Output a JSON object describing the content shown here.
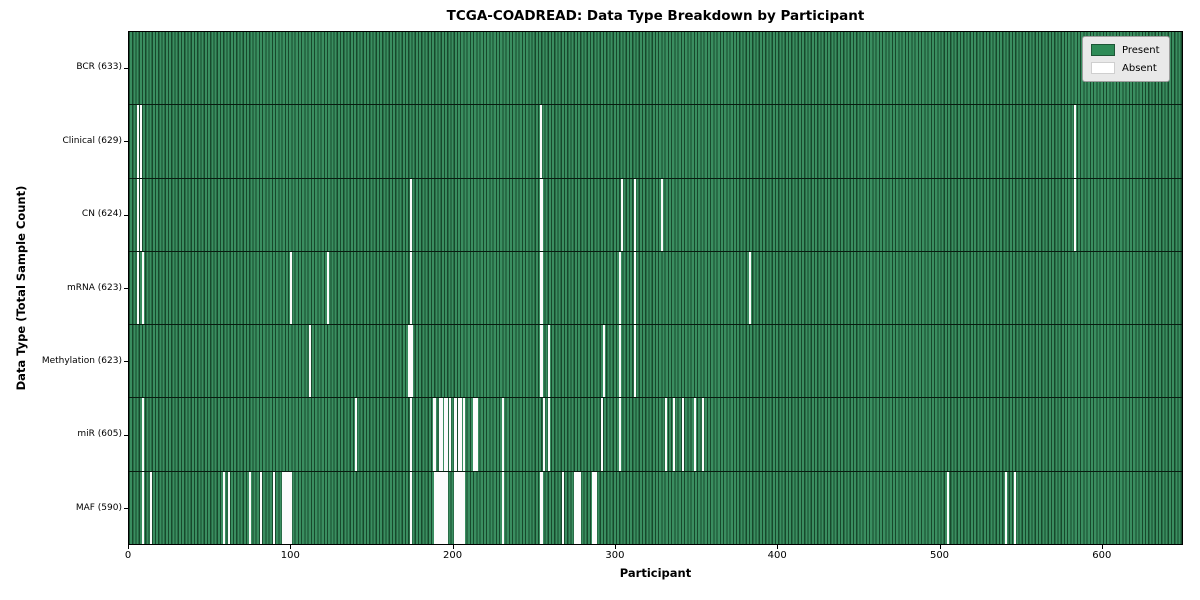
{
  "title": "TCGA-COADREAD: Data Type Breakdown by Participant",
  "axes": {
    "x_label": "Participant",
    "y_label": "Data Type (Total Sample Count)",
    "x_ticks": [
      0,
      100,
      200,
      300,
      400,
      500,
      600
    ]
  },
  "legend": {
    "items": [
      {
        "label": "Present",
        "color": "#2e8b57",
        "edge": "#1d5636"
      },
      {
        "label": "Absent",
        "color": "#ffffff",
        "edge": "#cfcfcf"
      }
    ]
  },
  "colors": {
    "present_fill": "#3a8e60",
    "present_edge": "#17492c",
    "absent": "#ffffff",
    "row_divider": "#081c10",
    "plot_border": "#000000",
    "legend_bg": "#e9e9e9",
    "legend_border": "#9e9e9e"
  },
  "chart_data": {
    "type": "heatmap",
    "title": "TCGA-COADREAD: Data Type Breakdown by Participant",
    "xlabel": "Participant",
    "ylabel": "Data Type (Total Sample Count)",
    "legend": [
      "Present",
      "Absent"
    ],
    "legend_position": "upper right",
    "n_participants": 633,
    "x_range": [
      0,
      650
    ],
    "grid": false,
    "rows": [
      {
        "label": "BCR (633)",
        "name": "BCR",
        "present_count": 633,
        "absent_participants": []
      },
      {
        "label": "Clinical (629)",
        "name": "Clinical",
        "present_count": 629,
        "absent_participants": [
          5,
          7,
          253,
          582
        ]
      },
      {
        "label": "CN (624)",
        "name": "CN",
        "present_count": 624,
        "absent_participants": [
          5,
          7,
          173,
          253,
          254,
          303,
          311,
          328,
          582
        ]
      },
      {
        "label": "mRNA (623)",
        "name": "mRNA",
        "present_count": 623,
        "absent_participants": [
          5,
          8,
          99,
          122,
          173,
          253,
          254,
          302,
          311,
          382
        ]
      },
      {
        "label": "Methylation (623)",
        "name": "Methylation",
        "present_count": 623,
        "absent_participants": [
          111,
          172,
          173,
          174,
          253,
          254,
          258,
          292,
          302,
          311
        ]
      },
      {
        "label": "miR (605)",
        "name": "miR",
        "present_count": 605,
        "absent_participants": [
          8,
          139,
          173,
          187,
          188,
          191,
          192,
          194,
          195,
          197,
          200,
          201,
          203,
          204,
          206,
          212,
          213,
          214,
          230,
          255,
          258,
          291,
          302,
          330,
          335,
          341,
          348,
          353
        ]
      },
      {
        "label": "MAF (590)",
        "name": "MAF",
        "present_count": 590,
        "absent_participants": [
          8,
          13,
          58,
          61,
          74,
          81,
          89,
          94,
          95,
          96,
          97,
          98,
          99,
          173,
          188,
          189,
          190,
          191,
          192,
          193,
          194,
          195,
          200,
          201,
          202,
          203,
          204,
          205,
          206,
          230,
          253,
          254,
          267,
          274,
          275,
          276,
          277,
          285,
          286,
          287,
          504,
          540,
          545
        ]
      }
    ]
  }
}
